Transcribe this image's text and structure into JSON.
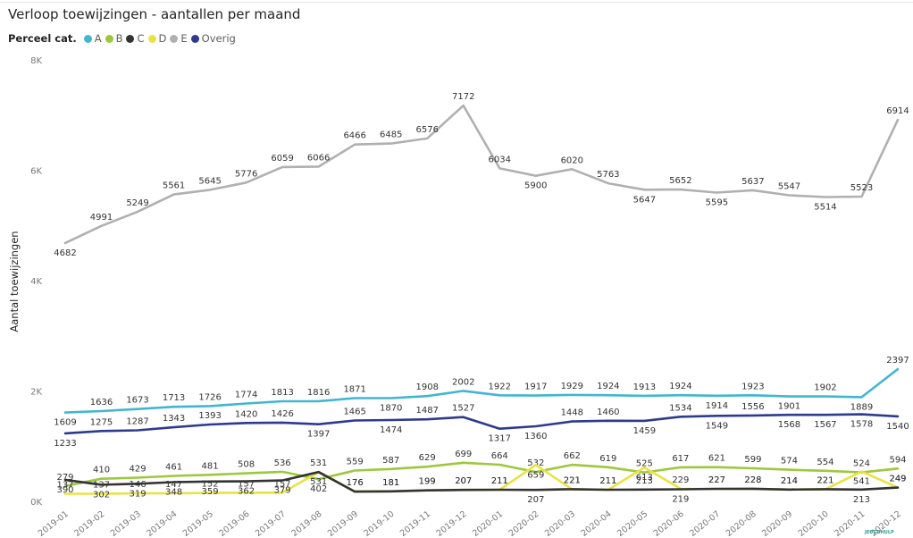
{
  "title": "Verloop toewijzingen - aantallen per maand",
  "legend": {
    "title": "Perceel cat.",
    "items": [
      {
        "label": "A",
        "color": "#41b6d1"
      },
      {
        "label": "B",
        "color": "#9dc83c"
      },
      {
        "label": "C",
        "color": "#333333"
      },
      {
        "label": "D",
        "color": "#e8e343"
      },
      {
        "label": "E",
        "color": "#b0b0b0"
      },
      {
        "label": "Overig",
        "color": "#2f3a8f"
      }
    ]
  },
  "watermark": "JEUGDHULP",
  "chart_data": {
    "type": "line",
    "ylabel": "Aantal toewijzingen",
    "xlabel": "",
    "ylim": [
      0,
      8000
    ],
    "yticks": [
      0,
      2000,
      4000,
      6000,
      8000
    ],
    "ytick_labels": [
      "0K",
      "2K",
      "4K",
      "6K",
      "8K"
    ],
    "grid": false,
    "legend_position": "top-left",
    "x": [
      "2019-01",
      "2019-02",
      "2019-03",
      "2019-04",
      "2019-05",
      "2019-06",
      "2019-07",
      "2019-08",
      "2019-09",
      "2019-10",
      "2019-11",
      "2019-12",
      "2020-01",
      "2020-02",
      "2020-03",
      "2020-04",
      "2020-05",
      "2020-06",
      "2020-07",
      "2020-08",
      "2020-09",
      "2020-10",
      "2020-11",
      "2020-12"
    ],
    "series": [
      {
        "name": "E",
        "color": "#b0b0b0",
        "values": [
          4682,
          4991,
          5249,
          5561,
          5645,
          5776,
          6059,
          6066,
          6466,
          6485,
          6576,
          7172,
          6034,
          5900,
          6020,
          5763,
          5647,
          5652,
          5595,
          5637,
          5547,
          5514,
          5523,
          6914
        ],
        "labels_below": [
          1,
          0,
          0,
          0,
          0,
          0,
          0,
          0,
          0,
          0,
          0,
          0,
          0,
          1,
          0,
          0,
          1,
          0,
          1,
          0,
          0,
          1,
          0,
          0
        ]
      },
      {
        "name": "A",
        "color": "#41b6d1",
        "values": [
          1609,
          1636,
          1673,
          1713,
          1726,
          1774,
          1813,
          1816,
          1871,
          1870,
          1908,
          2002,
          1922,
          1917,
          1929,
          1924,
          1913,
          1924,
          1914,
          1923,
          1901,
          1902,
          1889,
          2397
        ],
        "labels_below": [
          1,
          0,
          0,
          0,
          0,
          0,
          0,
          0,
          0,
          1,
          0,
          0,
          0,
          0,
          0,
          0,
          0,
          0,
          1,
          0,
          1,
          0,
          1,
          0
        ]
      },
      {
        "name": "Overig",
        "color": "#2f3a8f",
        "values": [
          1233,
          1275,
          1287,
          1343,
          1393,
          1420,
          1426,
          1397,
          1465,
          1474,
          1487,
          1527,
          1317,
          1360,
          1448,
          1460,
          1459,
          1534,
          1549,
          1556,
          1568,
          1567,
          1578,
          1540
        ],
        "labels_below": [
          1,
          0,
          0,
          0,
          0,
          0,
          0,
          1,
          0,
          1,
          0,
          0,
          1,
          1,
          0,
          0,
          1,
          0,
          1,
          0,
          1,
          1,
          1,
          1
        ]
      },
      {
        "name": "B",
        "color": "#9dc83c",
        "values": [
          279,
          410,
          429,
          461,
          481,
          508,
          536,
          402,
          559,
          587,
          629,
          699,
          664,
          532,
          662,
          619,
          525,
          617,
          621,
          599,
          574,
          554,
          524,
          594
        ],
        "labels_below": [
          0,
          0,
          0,
          0,
          0,
          0,
          0,
          1,
          0,
          0,
          0,
          0,
          0,
          0,
          0,
          0,
          0,
          0,
          0,
          0,
          0,
          0,
          0,
          0
        ]
      },
      {
        "name": "D",
        "color": "#e8e343",
        "values": [
          137,
          137,
          146,
          147,
          152,
          157,
          157,
          531,
          176,
          181,
          199,
          207,
          211,
          659,
          221,
          211,
          613,
          229,
          227,
          228,
          214,
          221,
          541,
          249
        ],
        "labels_below": [
          0,
          0,
          0,
          0,
          0,
          0,
          0,
          1,
          0,
          0,
          0,
          0,
          0,
          1,
          0,
          0,
          1,
          0,
          0,
          0,
          0,
          0,
          1,
          0
        ]
      },
      {
        "name": "C",
        "color": "#333333",
        "values": [
          390,
          302,
          319,
          348,
          359,
          362,
          379,
          531,
          176,
          181,
          199,
          207,
          211,
          207,
          221,
          211,
          213,
          219,
          227,
          228,
          214,
          221,
          213,
          249
        ],
        "labels_below": [
          1,
          1,
          1,
          1,
          1,
          1,
          1,
          0,
          0,
          0,
          0,
          0,
          0,
          1,
          0,
          0,
          0,
          1,
          0,
          0,
          0,
          0,
          1,
          0
        ]
      }
    ]
  }
}
